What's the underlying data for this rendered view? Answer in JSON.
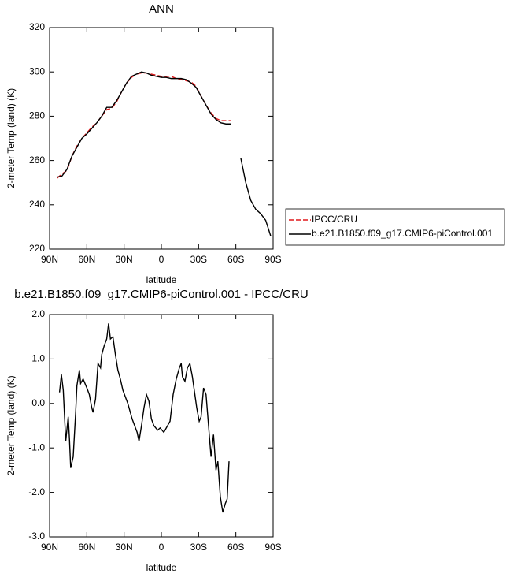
{
  "chart_data": [
    {
      "type": "line",
      "title": "ANN",
      "xlabel": "latitude",
      "ylabel": "2-meter Temp (land) (K)",
      "xlim": [
        90,
        -90
      ],
      "ylim": [
        220,
        320
      ],
      "xticks": [
        {
          "value": 90,
          "label": "90N"
        },
        {
          "value": 60,
          "label": "60N"
        },
        {
          "value": 30,
          "label": "30N"
        },
        0,
        {
          "value": -30,
          "label": "30S"
        },
        {
          "value": -60,
          "label": "60S"
        },
        {
          "value": -90,
          "label": "90S"
        }
      ],
      "yticks": [
        220,
        240,
        260,
        280,
        300,
        320
      ],
      "legend": "right",
      "x": [
        84,
        80,
        76,
        72,
        68,
        64,
        60,
        56,
        52,
        48,
        44,
        40,
        36,
        32,
        28,
        24,
        20,
        16,
        12,
        8,
        4,
        0,
        -4,
        -8,
        -12,
        -16,
        -20,
        -24,
        -28,
        -32,
        -36,
        -40,
        -44,
        -48,
        -52,
        -56,
        -60,
        -64,
        -68,
        -72,
        -76,
        -80,
        -84,
        -88
      ],
      "series": [
        {
          "name": "IPCC/CRU",
          "color": "#e0191b",
          "style": "dashed",
          "values": [
            252,
            254,
            255.5,
            262,
            266.5,
            270,
            272.5,
            275,
            277,
            280,
            283,
            283.5,
            286.5,
            291,
            295,
            297.5,
            299,
            299.5,
            299.5,
            299,
            298.5,
            298,
            298,
            298,
            297,
            296.5,
            296,
            295.5,
            293.5,
            289,
            285,
            281.5,
            279,
            278,
            278,
            278,
            null,
            null,
            null,
            null,
            null,
            null,
            null,
            null
          ]
        },
        {
          "name": "b.e21.B1850.f09_g17.CMIP6-piControl.001",
          "color": "#000000",
          "style": "solid",
          "values": [
            252.5,
            253,
            256,
            262,
            266,
            270,
            272,
            274.5,
            277,
            280,
            284,
            284,
            287,
            291,
            295,
            298,
            299,
            300,
            299.5,
            298.5,
            298,
            297.5,
            297.5,
            297,
            297,
            297,
            296.5,
            295,
            293,
            289,
            285,
            281,
            278.5,
            277,
            276.5,
            276.5,
            null,
            261,
            250,
            242,
            238,
            236,
            233,
            226
          ]
        }
      ]
    },
    {
      "type": "line",
      "title": "b.e21.B1850.f09_g17.CMIP6-piControl.001 - IPCC/CRU",
      "xlabel": "latitude",
      "ylabel": "2-meter Temp (land) (K)",
      "xlim": [
        90,
        -90
      ],
      "ylim": [
        -3,
        2
      ],
      "xticks": [
        {
          "value": 90,
          "label": "90N"
        },
        {
          "value": 60,
          "label": "60N"
        },
        {
          "value": 30,
          "label": "30N"
        },
        0,
        {
          "value": -30,
          "label": "30S"
        },
        {
          "value": -60,
          "label": "60S"
        },
        {
          "value": -90,
          "label": "90S"
        }
      ],
      "yticks": [
        {
          "value": -3,
          "label": "-3.0"
        },
        {
          "value": -2,
          "label": "-2.0"
        },
        {
          "value": -1,
          "label": "-1.0"
        },
        {
          "value": 0,
          "label": "0.0"
        },
        {
          "value": 1,
          "label": "1.0"
        },
        {
          "value": 2,
          "label": "2.0"
        }
      ],
      "x": [
        82,
        80.5,
        79,
        77,
        75,
        74,
        73,
        71,
        69,
        68,
        66,
        65,
        63,
        60,
        58,
        56,
        55,
        53,
        51,
        49,
        48,
        46,
        44,
        42.5,
        41,
        39,
        37,
        35,
        33,
        31,
        29,
        27,
        25,
        23.5,
        21.5,
        19.5,
        18,
        16,
        14,
        12,
        10,
        8,
        6,
        3,
        1,
        -2,
        -4,
        -7,
        -9.5,
        -12,
        -14.5,
        -16,
        -17,
        -19,
        -21,
        -23,
        -25,
        -26.5,
        -28.5,
        -30.5,
        -32,
        -34,
        -36,
        -38,
        -40,
        -42,
        -44,
        -45.5,
        -47.5,
        -49.5,
        -51.5,
        -53,
        -54.5
      ],
      "series": [
        {
          "name": "b.e21.B1850.f09_g17.CMIP6-piControl.001 - IPCC/CRU",
          "color": "#000000",
          "style": "solid",
          "values": [
            0.25,
            0.65,
            0.3,
            -0.85,
            -0.3,
            -0.8,
            -1.45,
            -1.2,
            -0.2,
            0.4,
            0.75,
            0.45,
            0.55,
            0.35,
            0.2,
            -0.1,
            -0.2,
            0.1,
            0.9,
            0.8,
            1.1,
            1.3,
            1.45,
            1.8,
            1.45,
            1.5,
            1.1,
            0.75,
            0.55,
            0.3,
            0.15,
            0.0,
            -0.2,
            -0.35,
            -0.5,
            -0.65,
            -0.85,
            -0.5,
            -0.1,
            0.2,
            0.05,
            -0.35,
            -0.5,
            -0.6,
            -0.55,
            -0.65,
            -0.55,
            -0.4,
            0.2,
            0.55,
            0.8,
            0.9,
            0.6,
            0.5,
            0.8,
            0.9,
            0.6,
            0.3,
            -0.1,
            -0.4,
            -0.3,
            0.35,
            0.2,
            -0.5,
            -1.2,
            -0.7,
            -1.5,
            -1.3,
            -2.1,
            -2.45,
            -2.25,
            -2.15,
            -1.3
          ]
        }
      ]
    }
  ]
}
